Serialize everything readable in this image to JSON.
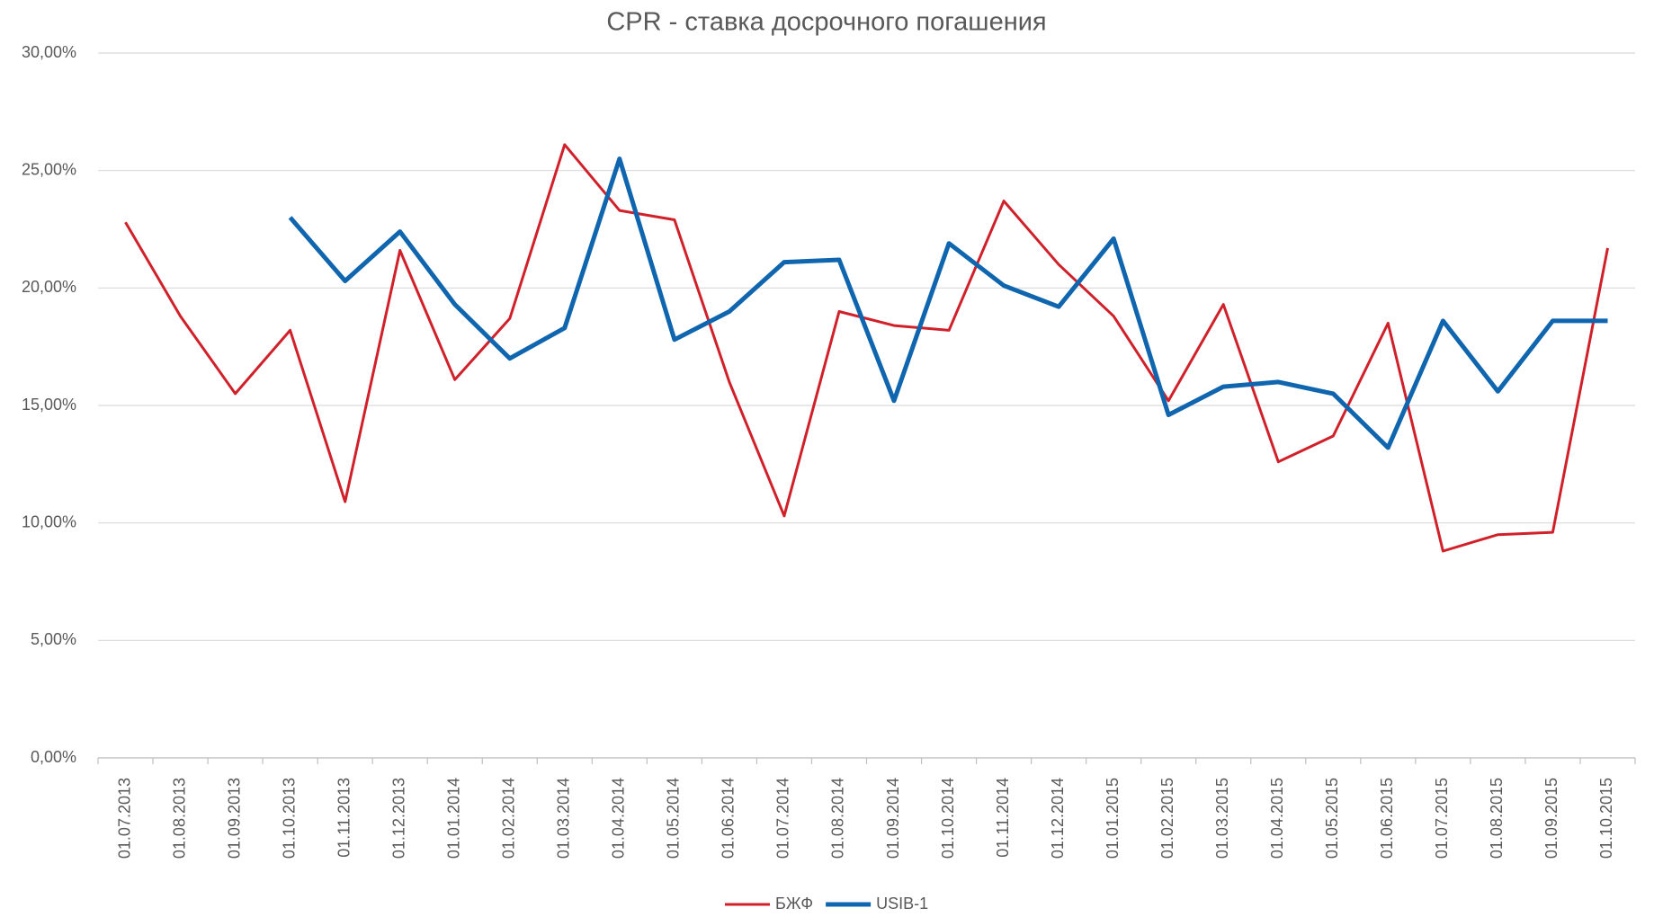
{
  "chart_data": {
    "type": "line",
    "title": "CPR - ставка досрочного погашения",
    "categories": [
      "01.07.2013",
      "01.08.2013",
      "01.09.2013",
      "01.10.2013",
      "01.11.2013",
      "01.12.2013",
      "01.01.2014",
      "01.02.2014",
      "01.03.2014",
      "01.04.2014",
      "01.05.2014",
      "01.06.2014",
      "01.07.2014",
      "01.08.2014",
      "01.09.2014",
      "01.10.2014",
      "01.11.2014",
      "01.12.2014",
      "01.01.2015",
      "01.02.2015",
      "01.03.2015",
      "01.04.2015",
      "01.05.2015",
      "01.06.2015",
      "01.07.2015",
      "01.08.2015",
      "01.09.2015",
      "01.10.2015"
    ],
    "series": [
      {
        "name": "БЖФ",
        "color": "#d0202a",
        "values": [
          22.8,
          18.8,
          15.5,
          18.2,
          10.9,
          21.6,
          16.1,
          18.7,
          26.1,
          23.3,
          22.9,
          16.0,
          10.3,
          19.0,
          18.4,
          18.2,
          23.7,
          21.0,
          18.8,
          15.2,
          19.3,
          12.6,
          13.7,
          18.5,
          8.8,
          9.5,
          9.6,
          21.7
        ]
      },
      {
        "name": "USIB-1",
        "color": "#0f65ae",
        "values": [
          null,
          null,
          null,
          23.0,
          20.3,
          22.4,
          19.3,
          17.0,
          18.3,
          25.5,
          17.8,
          19.0,
          21.1,
          21.2,
          15.2,
          21.9,
          20.1,
          19.2,
          22.1,
          14.6,
          15.8,
          16.0,
          15.5,
          13.2,
          18.6,
          15.6,
          18.6,
          18.6
        ]
      }
    ],
    "ylim": [
      0,
      30
    ],
    "yticks": [
      {
        "value": 0,
        "label": "0,00%"
      },
      {
        "value": 5,
        "label": "5,00%"
      },
      {
        "value": 10,
        "label": "10,00%"
      },
      {
        "value": 15,
        "label": "15,00%"
      },
      {
        "value": 20,
        "label": "20,00%"
      },
      {
        "value": 25,
        "label": "25,00%"
      },
      {
        "value": 30,
        "label": "30,00%"
      }
    ],
    "grid": true,
    "legend": "bottom"
  }
}
